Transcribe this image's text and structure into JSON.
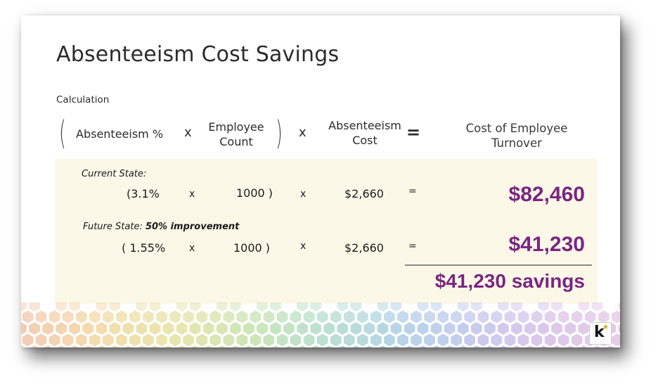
{
  "slide": {
    "title": "Absenteeism Cost Savings",
    "calculation_label": "Calculation"
  },
  "formula": {
    "open_paren": "(",
    "close_paren": ")",
    "absenteeism_pct": "Absenteeism %",
    "times_1": "x",
    "employee_count_line1": "Employee",
    "employee_count_line2": "Count",
    "times_2": "x",
    "absenteeism_cost_line1": "Absenteeism",
    "absenteeism_cost_line2": "Cost",
    "equals": "=",
    "result_line1": "Cost of Employee",
    "result_line2": "Turnover"
  },
  "current_state": {
    "label": "Current State:",
    "pct": "(3.1%",
    "times_1": "x",
    "count": "1000 )",
    "times_2": "x",
    "cost": "$2,660",
    "equals": "=",
    "result": "$82,460"
  },
  "future_state": {
    "label": "Future State: ",
    "label_emphasis": "50% improvement",
    "pct": "( 1.55%",
    "times_1": "x",
    "count": "1000 )",
    "times_2": "x",
    "cost": "$2,660",
    "equals": "=",
    "result": "$41,230"
  },
  "savings": {
    "text": "$41,230 savings"
  },
  "colors": {
    "accent_purple": "#7b2680",
    "band_background": "#fcf8e8"
  },
  "logo": {
    "letter": "k",
    "star": "★"
  }
}
